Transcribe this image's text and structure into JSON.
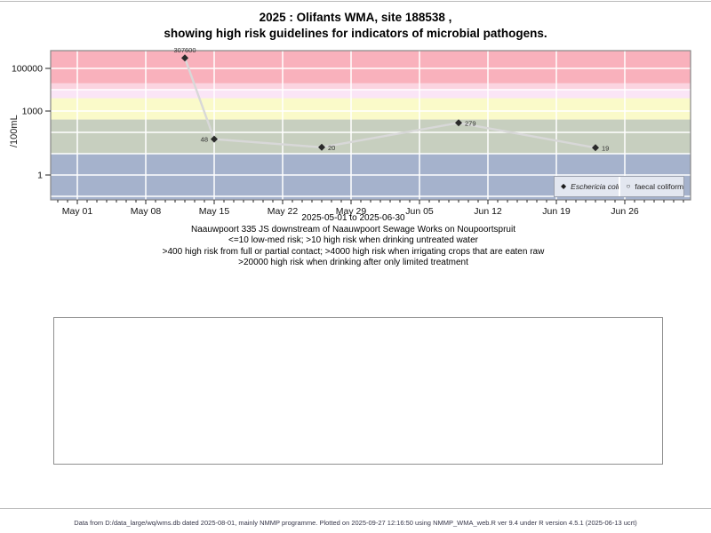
{
  "page": {
    "title_line1": "2025 : Olifants WMA, site 188538 ,",
    "title_line2": "showing high risk guidelines for indicators of microbial pathogens.",
    "footer": "Data from D:/data_large/wq/wms.db dated 2025-08-01, mainly NMMP programme. Plotted on 2025-09-27 12:16:50 using NMMP_WMA_web.R ver 9.4 under R version 4.5.1 (2025-06-13 ucrt)"
  },
  "chart_data": {
    "type": "line",
    "title": "2025 : Olifants WMA, site 188538 , showing high risk guidelines for indicators of microbial pathogens.",
    "ylabel": "/100mL",
    "y_scale": "log10",
    "y_ticks": [
      "100000",
      "1000",
      "1"
    ],
    "y_gridlines": [
      0.1,
      1,
      10,
      100,
      1000,
      10000,
      100000
    ],
    "ylim": [
      0.068,
      680000
    ],
    "x_range_label": "2025-05-01 to 2025-06-30",
    "x_ticks": [
      "May 01",
      "May 08",
      "May 15",
      "May 22",
      "May 29",
      "Jun 05",
      "Jun 12",
      "Jun 19",
      "Jun 26"
    ],
    "x_tick_dates": [
      "2025-05-01",
      "2025-05-08",
      "2025-05-15",
      "2025-05-22",
      "2025-05-29",
      "2025-06-05",
      "2025-06-12",
      "2025-06-19",
      "2025-06-26"
    ],
    "series": [
      {
        "name": "Eschericia coli",
        "marker": "filled-diamond",
        "color": "#2a2a2a",
        "line_color": "#d8d8d8",
        "points": [
          {
            "date": "2025-05-12",
            "value": 307600,
            "label": "307600",
            "label_side": "top"
          },
          {
            "date": "2025-05-15",
            "value": 48,
            "label": "48",
            "label_side": "left"
          },
          {
            "date": "2025-05-26",
            "value": 20,
            "label": "20",
            "label_side": "right"
          },
          {
            "date": "2025-06-09",
            "value": 279,
            "label": "279",
            "label_side": "right"
          },
          {
            "date": "2025-06-23",
            "value": 19,
            "label": "19",
            "label_side": "right"
          }
        ]
      },
      {
        "name": "faecal coliforms",
        "marker": "open-circle",
        "color": "#2a2a2a",
        "points": []
      }
    ],
    "bands": [
      {
        "from": 0.068,
        "to": 10,
        "color": "#a5b2cc",
        "label": "<=10 low-med risk"
      },
      {
        "from": 10,
        "to": 400,
        "color": "#c7cfbf",
        "label": ">10 high risk when drinking untreated water"
      },
      {
        "from": 400,
        "to": 4000,
        "color": "#fafac9",
        "label": ">400 high risk from full or partial contact"
      },
      {
        "from": 4000,
        "to": 10000,
        "color": "#fae5f6",
        "label": ">4000 high risk when irrigating crops that are eaten raw"
      },
      {
        "from": 10000,
        "to": 20000,
        "color": "#fbd4e0",
        "label": ""
      },
      {
        "from": 20000,
        "to": 680000,
        "color": "#f9b1bc",
        "label": ">20000 high risk when drinking after only limited treatment"
      }
    ],
    "caption_lines": [
      "Naauwpoort 335 JS downstream of Naauwpoort Sewage Works on Noupoortspruit",
      "<=10 low-med risk; >10 high risk when drinking untreated water",
      ">400 high risk from full or partial contact; >4000 high risk when irrigating crops that are eaten raw",
      ">20000 high risk when drinking after only limited treatment"
    ],
    "legend_position": "bottom-right-inside",
    "grid": true
  }
}
